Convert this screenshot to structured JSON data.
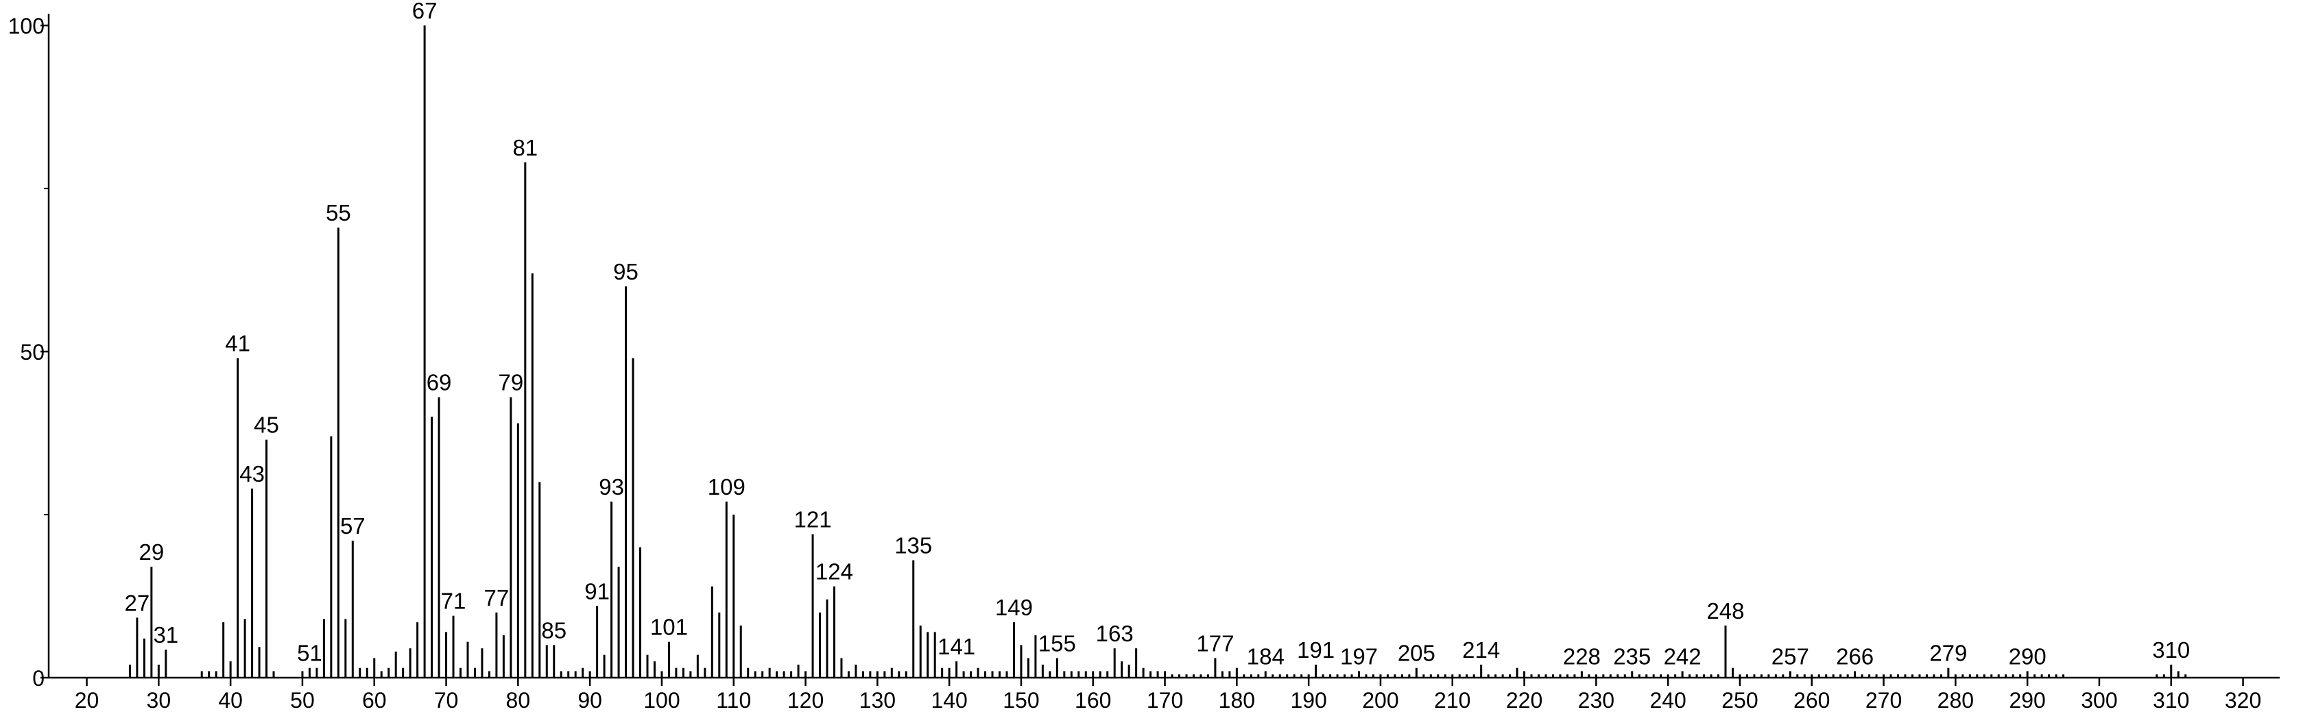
{
  "chart_data": {
    "type": "stem",
    "x": [
      26,
      27,
      28,
      29,
      30,
      31,
      36,
      37,
      38,
      39,
      40,
      41,
      42,
      43,
      44,
      45,
      46,
      50,
      51,
      52,
      53,
      54,
      55,
      56,
      57,
      58,
      59,
      60,
      61,
      62,
      63,
      64,
      65,
      66,
      67,
      68,
      69,
      70,
      71,
      72,
      73,
      74,
      75,
      76,
      77,
      78,
      79,
      80,
      81,
      82,
      83,
      84,
      85,
      86,
      87,
      88,
      89,
      90,
      91,
      92,
      93,
      94,
      95,
      96,
      97,
      98,
      99,
      100,
      101,
      102,
      103,
      104,
      105,
      106,
      107,
      108,
      109,
      110,
      111,
      112,
      113,
      114,
      115,
      116,
      117,
      118,
      119,
      120,
      121,
      122,
      123,
      124,
      125,
      126,
      127,
      128,
      129,
      130,
      131,
      132,
      133,
      134,
      135,
      136,
      137,
      138,
      139,
      140,
      141,
      142,
      143,
      144,
      145,
      146,
      147,
      148,
      149,
      150,
      151,
      152,
      153,
      154,
      155,
      156,
      157,
      158,
      159,
      160,
      161,
      162,
      163,
      164,
      165,
      166,
      167,
      168,
      169,
      170,
      171,
      172,
      173,
      174,
      175,
      176,
      177,
      178,
      179,
      180,
      181,
      182,
      183,
      184,
      185,
      186,
      187,
      188,
      189,
      190,
      191,
      192,
      193,
      194,
      195,
      196,
      197,
      198,
      199,
      200,
      201,
      202,
      203,
      204,
      205,
      206,
      207,
      208,
      209,
      210,
      211,
      212,
      213,
      214,
      215,
      216,
      217,
      218,
      219,
      220,
      221,
      222,
      223,
      224,
      225,
      226,
      227,
      228,
      229,
      230,
      231,
      232,
      233,
      234,
      235,
      236,
      237,
      238,
      239,
      240,
      241,
      242,
      243,
      244,
      245,
      246,
      247,
      248,
      249,
      250,
      251,
      252,
      253,
      254,
      255,
      256,
      257,
      258,
      259,
      260,
      261,
      262,
      263,
      264,
      265,
      266,
      267,
      268,
      269,
      270,
      271,
      272,
      273,
      274,
      275,
      276,
      277,
      278,
      279,
      280,
      281,
      282,
      283,
      284,
      285,
      286,
      287,
      288,
      289,
      290,
      291,
      292,
      293,
      294,
      295,
      308,
      309,
      310,
      311,
      312
    ],
    "values": [
      2,
      9.2,
      6,
      17,
      2,
      4.3,
      1,
      1,
      1,
      8.5,
      2.5,
      49,
      9,
      29,
      4.7,
      36.5,
      1,
      1,
      1.5,
      1.5,
      9,
      37,
      69,
      9,
      21,
      1.5,
      1.5,
      3,
      1,
      1.5,
      4,
      1.5,
      4.5,
      8.5,
      100,
      40,
      43,
      7,
      9.5,
      1.5,
      5.5,
      1.5,
      4.5,
      1,
      10,
      6.5,
      43,
      39,
      79,
      62,
      30,
      5,
      5,
      1,
      1,
      1,
      1.5,
      1,
      11,
      3.5,
      27,
      17,
      60,
      49,
      20,
      3.5,
      2.5,
      1,
      5.5,
      1.5,
      1.5,
      1,
      3.5,
      1.5,
      14,
      10,
      27,
      25,
      8,
      1.5,
      1,
      1,
      1.5,
      1,
      1,
      1,
      2,
      1,
      22,
      10,
      12,
      14,
      3,
      1,
      2,
      1,
      1,
      1,
      1,
      1.5,
      1,
      1,
      18,
      8,
      7,
      7,
      1.5,
      1.5,
      2.5,
      1,
      1,
      1.5,
      1,
      1,
      1,
      1,
      8.5,
      5,
      3,
      6.5,
      2,
      1,
      3,
      1,
      1,
      1,
      1,
      1,
      1,
      1,
      4.5,
      2.5,
      2,
      4.5,
      1.5,
      1,
      1,
      1,
      0.5,
      0.5,
      0.5,
      0.5,
      0.5,
      0.5,
      3,
      1,
      1,
      1.5,
      0.5,
      0.5,
      0.5,
      1,
      0.5,
      0.5,
      0.5,
      0.5,
      0.5,
      0.5,
      2,
      0.5,
      0.5,
      0.5,
      0.5,
      0.5,
      1,
      0.5,
      0.5,
      0.5,
      0.5,
      0.5,
      0.5,
      0.5,
      1.5,
      0.5,
      0.5,
      0.5,
      0.5,
      0.5,
      0.5,
      0.5,
      0.5,
      2,
      0.5,
      0.5,
      0.5,
      0.5,
      1.5,
      1,
      0.5,
      0.5,
      0.5,
      0.5,
      0.5,
      0.5,
      0.5,
      1,
      0.5,
      0.5,
      0.5,
      0.5,
      0.5,
      0.5,
      1,
      0.5,
      0.5,
      0.5,
      0.5,
      0.5,
      0.5,
      1,
      0.5,
      0.5,
      0.5,
      0.5,
      0.5,
      8,
      1.5,
      0.5,
      0.5,
      0.5,
      0.5,
      0.5,
      0.5,
      0.5,
      1,
      0.5,
      0.5,
      0.5,
      0.5,
      0.5,
      0.5,
      0.5,
      0.5,
      1,
      0.5,
      0.5,
      0.5,
      0.5,
      0.5,
      0.5,
      0.5,
      0.5,
      0.5,
      0.5,
      0.5,
      0.5,
      1.5,
      0.5,
      0.5,
      0.5,
      0.5,
      0.5,
      0.5,
      0.5,
      0.5,
      0.5,
      0.5,
      1,
      0.5,
      0.5,
      0.5,
      0.5,
      0.5,
      0.5,
      0.5,
      2,
      1,
      0.5
    ],
    "annotations": [
      27,
      29,
      31,
      41,
      43,
      45,
      51,
      55,
      57,
      67,
      69,
      71,
      77,
      79,
      81,
      85,
      91,
      93,
      95,
      101,
      109,
      121,
      124,
      135,
      141,
      149,
      155,
      163,
      177,
      184,
      191,
      197,
      205,
      214,
      228,
      235,
      242,
      248,
      257,
      266,
      279,
      290,
      310
    ],
    "color": "#000000",
    "xlim": [
      14.7,
      325.1
    ],
    "ylim": [
      0,
      101.8
    ],
    "xticks": [
      20,
      30,
      40,
      50,
      60,
      70,
      80,
      90,
      100,
      110,
      120,
      130,
      140,
      150,
      160,
      170,
      180,
      190,
      200,
      210,
      220,
      230,
      240,
      250,
      260,
      270,
      280,
      290,
      300,
      310,
      320
    ],
    "yticks": [
      0,
      50,
      100
    ],
    "yminor": [
      25,
      75
    ]
  }
}
